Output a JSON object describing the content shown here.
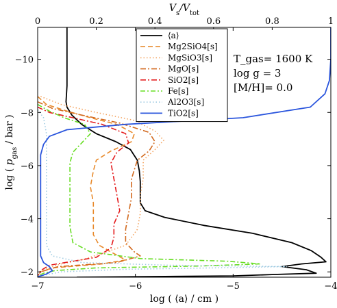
{
  "chart_data": {
    "type": "line",
    "xlabel": "log ( ⟨a⟩ / cm )",
    "ylabel": "log ( p_gas / bar )",
    "top_xlabel": "V_s/V_tot",
    "xlim": [
      -7,
      -4
    ],
    "ylim": [
      -1.8,
      -11.2
    ],
    "top_xlim": [
      0,
      1
    ],
    "x_ticks": [
      -7,
      -6,
      -5,
      -4
    ],
    "x_tick_labels": [
      "−7",
      "−6",
      "−5",
      "−4"
    ],
    "y_ticks": [
      -2,
      -4,
      -6,
      -8,
      -10
    ],
    "y_tick_labels": [
      "−2",
      "−4",
      "−6",
      "−8",
      "−10"
    ],
    "top_ticks": [
      0,
      0.2,
      0.4,
      0.6,
      0.8,
      1
    ],
    "top_tick_labels": [
      "0",
      "0.2",
      "0.4",
      "0.6",
      "0.8",
      "1"
    ],
    "grid": false,
    "legend_position": "top-center",
    "annotations": [
      "T_gas= 1600 K",
      "log g  = 3",
      "[M/H]= 0.0"
    ],
    "series": [
      {
        "name": "⟨a⟩",
        "color": "#000000",
        "dash": "solid",
        "axis": "bottom",
        "points": [
          [
            -6.7,
            -11.2
          ],
          [
            -6.7,
            -10
          ],
          [
            -6.7,
            -9
          ],
          [
            -6.71,
            -8.4
          ],
          [
            -6.7,
            -8.2
          ],
          [
            -6.65,
            -7.9
          ],
          [
            -6.55,
            -7.55
          ],
          [
            -6.4,
            -7.2
          ],
          [
            -6.2,
            -6.9
          ],
          [
            -6.05,
            -6.6
          ],
          [
            -5.98,
            -6.2
          ],
          [
            -5.96,
            -5.8
          ],
          [
            -5.95,
            -5.4
          ],
          [
            -5.95,
            -5
          ],
          [
            -5.95,
            -4.6
          ],
          [
            -5.9,
            -4.3
          ],
          [
            -5.7,
            -4.05
          ],
          [
            -5.3,
            -3.75
          ],
          [
            -4.8,
            -3.45
          ],
          [
            -4.4,
            -3.1
          ],
          [
            -4.2,
            -2.8
          ],
          [
            -4.1,
            -2.55
          ],
          [
            -4.05,
            -2.38
          ],
          [
            -4.3,
            -2.3
          ],
          [
            -4.5,
            -2.2
          ],
          [
            -4.25,
            -2.08
          ],
          [
            -4.15,
            -1.95
          ],
          [
            -4.6,
            -1.9
          ],
          [
            -5.0,
            -1.85
          ],
          [
            -6.6,
            -1.8
          ]
        ]
      },
      {
        "name": "Mg2SiO4[s]",
        "color": "#e8892a",
        "dash": "7,4",
        "axis": "top",
        "points": [
          [
            0.0,
            -8.6
          ],
          [
            0.03,
            -8.3
          ],
          [
            0.1,
            -8.05
          ],
          [
            0.18,
            -7.8
          ],
          [
            0.27,
            -7.55
          ],
          [
            0.33,
            -7.2
          ],
          [
            0.32,
            -6.9
          ],
          [
            0.25,
            -6.55
          ],
          [
            0.2,
            -6.2
          ],
          [
            0.19,
            -5.8
          ],
          [
            0.18,
            -5.2
          ],
          [
            0.19,
            -4.6
          ],
          [
            0.19,
            -4.0
          ],
          [
            0.19,
            -3.4
          ],
          [
            0.21,
            -3.0
          ],
          [
            0.25,
            -2.75
          ],
          [
            0.3,
            -2.45
          ],
          [
            0.22,
            -2.3
          ],
          [
            0.05,
            -2.15
          ],
          [
            0.01,
            -2.0
          ],
          [
            0.0,
            -1.85
          ]
        ]
      },
      {
        "name": "MgSiO3[s]",
        "color": "#f4a460",
        "dash": "1.5,3",
        "axis": "top",
        "points": [
          [
            0.01,
            -8.6
          ],
          [
            0.08,
            -8.3
          ],
          [
            0.2,
            -8.0
          ],
          [
            0.33,
            -7.7
          ],
          [
            0.4,
            -7.3
          ],
          [
            0.43,
            -6.95
          ],
          [
            0.4,
            -6.6
          ],
          [
            0.36,
            -6.2
          ],
          [
            0.36,
            -5.5
          ],
          [
            0.35,
            -4.9
          ],
          [
            0.35,
            -4.2
          ],
          [
            0.34,
            -3.6
          ],
          [
            0.3,
            -3.0
          ],
          [
            0.22,
            -2.7
          ],
          [
            0.15,
            -2.45
          ],
          [
            0.08,
            -2.3
          ],
          [
            0.02,
            -2.1
          ],
          [
            0.0,
            -1.85
          ]
        ]
      },
      {
        "name": "MgO[s]",
        "color": "#d2691e",
        "dash": "8,3,2,3",
        "axis": "top",
        "points": [
          [
            0.0,
            -8.4
          ],
          [
            0.05,
            -8.15
          ],
          [
            0.15,
            -7.9
          ],
          [
            0.28,
            -7.6
          ],
          [
            0.38,
            -7.25
          ],
          [
            0.4,
            -6.9
          ],
          [
            0.38,
            -6.55
          ],
          [
            0.34,
            -6.2
          ],
          [
            0.32,
            -5.5
          ],
          [
            0.32,
            -4.8
          ],
          [
            0.31,
            -4.2
          ],
          [
            0.3,
            -3.6
          ],
          [
            0.3,
            -3.1
          ],
          [
            0.33,
            -2.75
          ],
          [
            0.35,
            -2.6
          ],
          [
            0.27,
            -2.35
          ],
          [
            0.07,
            -2.2
          ],
          [
            0.01,
            -2.0
          ],
          [
            0.0,
            -1.85
          ]
        ]
      },
      {
        "name": "SiO2[s]",
        "color": "#e41a1c",
        "dash": "8,3,2,3",
        "axis": "top",
        "points": [
          [
            0.0,
            -8.2
          ],
          [
            0.04,
            -8.0
          ],
          [
            0.12,
            -7.8
          ],
          [
            0.22,
            -7.55
          ],
          [
            0.3,
            -7.2
          ],
          [
            0.31,
            -6.85
          ],
          [
            0.27,
            -6.5
          ],
          [
            0.25,
            -6.1
          ],
          [
            0.26,
            -5.5
          ],
          [
            0.27,
            -4.9
          ],
          [
            0.28,
            -4.3
          ],
          [
            0.26,
            -3.8
          ],
          [
            0.26,
            -3.3
          ],
          [
            0.25,
            -2.9
          ],
          [
            0.2,
            -2.55
          ],
          [
            0.12,
            -2.4
          ],
          [
            0.04,
            -2.25
          ],
          [
            0.01,
            -2.05
          ],
          [
            0.0,
            -1.85
          ]
        ]
      },
      {
        "name": "Fe[s]",
        "color": "#66dd22",
        "dash": "7,3,2,3",
        "axis": "top",
        "points": [
          [
            0.0,
            -8.3
          ],
          [
            0.04,
            -8.05
          ],
          [
            0.09,
            -7.8
          ],
          [
            0.16,
            -7.55
          ],
          [
            0.18,
            -7.2
          ],
          [
            0.15,
            -6.85
          ],
          [
            0.12,
            -6.5
          ],
          [
            0.11,
            -6.1
          ],
          [
            0.11,
            -5.3
          ],
          [
            0.11,
            -4.5
          ],
          [
            0.11,
            -3.7
          ],
          [
            0.12,
            -3.1
          ],
          [
            0.18,
            -2.75
          ],
          [
            0.35,
            -2.5
          ],
          [
            0.65,
            -2.4
          ],
          [
            0.76,
            -2.3
          ],
          [
            0.55,
            -2.22
          ],
          [
            0.2,
            -2.15
          ],
          [
            0.06,
            -2.05
          ],
          [
            0.02,
            -1.95
          ],
          [
            0.0,
            -1.85
          ]
        ]
      },
      {
        "name": "Al2O3[s]",
        "color": "#9ecae1",
        "dash": "1.5,3",
        "axis": "top",
        "points": [
          [
            0.0,
            -8.1
          ],
          [
            0.02,
            -7.8
          ],
          [
            0.03,
            -7.2
          ],
          [
            0.03,
            -6.6
          ],
          [
            0.03,
            -6.0
          ],
          [
            0.03,
            -5.0
          ],
          [
            0.03,
            -4.0
          ],
          [
            0.03,
            -3.0
          ],
          [
            0.05,
            -2.6
          ],
          [
            0.15,
            -2.35
          ],
          [
            0.45,
            -2.25
          ],
          [
            0.85,
            -2.2
          ],
          [
            0.6,
            -2.15
          ],
          [
            0.3,
            -2.1
          ],
          [
            0.08,
            -2.0
          ],
          [
            0.01,
            -1.85
          ]
        ]
      },
      {
        "name": "TiO2[s]",
        "color": "#2a55dd",
        "dash": "solid",
        "axis": "top",
        "points": [
          [
            1.0,
            -11.2
          ],
          [
            1.0,
            -10
          ],
          [
            0.995,
            -9.2
          ],
          [
            0.98,
            -8.7
          ],
          [
            0.93,
            -8.2
          ],
          [
            0.7,
            -7.8
          ],
          [
            0.3,
            -7.55
          ],
          [
            0.1,
            -7.35
          ],
          [
            0.04,
            -7.1
          ],
          [
            0.02,
            -6.8
          ],
          [
            0.01,
            -6.4
          ],
          [
            0.01,
            -5
          ],
          [
            0.01,
            -3.5
          ],
          [
            0.01,
            -2.6
          ],
          [
            0.02,
            -2.35
          ],
          [
            0.04,
            -2.2
          ],
          [
            0.05,
            -2.05
          ],
          [
            0.03,
            -1.92
          ],
          [
            0.01,
            -1.85
          ],
          [
            0.0,
            -1.82
          ]
        ]
      }
    ]
  }
}
